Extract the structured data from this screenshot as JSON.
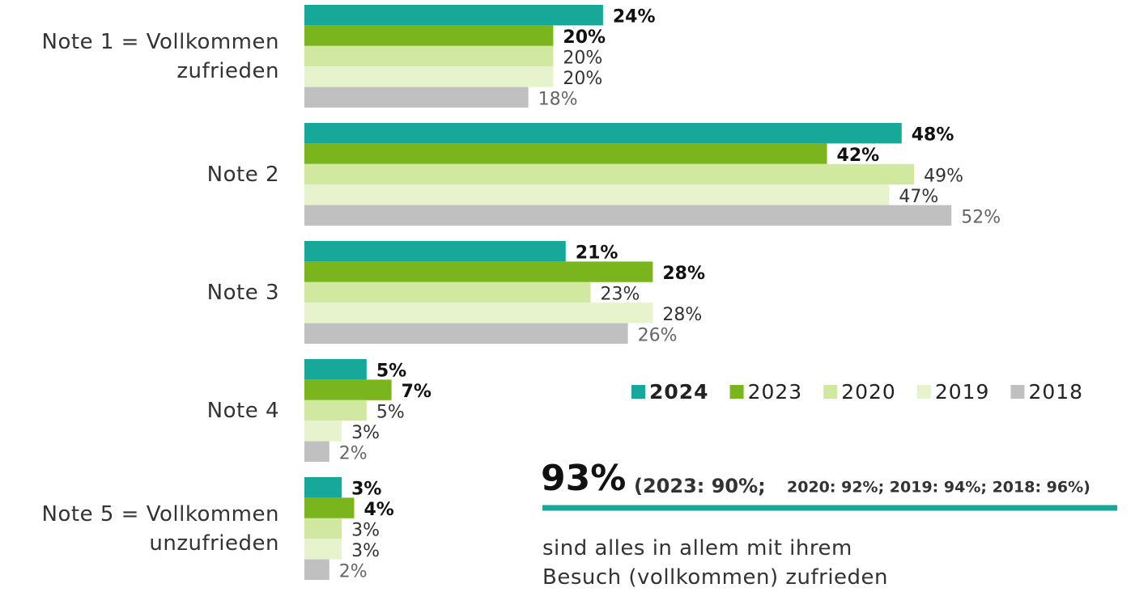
{
  "chart_data": {
    "type": "bar",
    "orientation": "horizontal",
    "categories": [
      "Note 1 = Vollkommen zufrieden",
      "Note 2",
      "Note 3",
      "Note 4",
      "Note 5 = Vollkommen unzufrieden"
    ],
    "series": [
      {
        "name": "2024",
        "color": "#17a89a",
        "values": [
          24,
          48,
          21,
          5,
          3
        ],
        "value_labels": [
          "24%",
          "48%",
          "21%",
          "5%",
          "3%"
        ]
      },
      {
        "name": "2023",
        "color": "#7ab51d",
        "values": [
          20,
          42,
          28,
          7,
          4
        ],
        "value_labels": [
          "20%",
          "42%",
          "28%",
          "7%",
          "4%"
        ]
      },
      {
        "name": "2020",
        "color": "#d1e8a0",
        "values": [
          20,
          49,
          23,
          5,
          3
        ],
        "value_labels": [
          "20%",
          "49%",
          "23%",
          "5%",
          "3%"
        ]
      },
      {
        "name": "2019",
        "color": "#e6f3cc",
        "values": [
          20,
          47,
          28,
          3,
          3
        ],
        "value_labels": [
          "20%",
          "47%",
          "28%",
          "3%",
          "3%"
        ]
      },
      {
        "name": "2018",
        "color": "#c0c0c0",
        "values": [
          18,
          52,
          26,
          2,
          2
        ],
        "value_labels": [
          "18%",
          "52%",
          "26%",
          "2%",
          "2%"
        ]
      }
    ],
    "annotation": {
      "headline": "93%",
      "detail_main": "(2023: 90%;",
      "detail_rest": "2020: 92%; 2019: 94%; 2018: 96%)",
      "text": [
        "sind alles in allem mit ihrem",
        "Besuch (vollkommen) zufrieden"
      ]
    }
  }
}
